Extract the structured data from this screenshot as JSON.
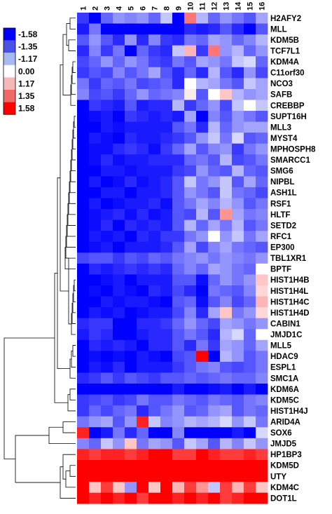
{
  "chart_data": {
    "type": "heatmap",
    "columns": [
      "1",
      "2",
      "3",
      "4",
      "5",
      "6",
      "7",
      "8",
      "9",
      "10",
      "11",
      "12",
      "13",
      "14",
      "15",
      "16"
    ],
    "rows": [
      "H2AFY2",
      "MLL",
      "KDM5B",
      "TCF7L1",
      "KDM4A",
      "C11orf30",
      "NCO3",
      "SAFB",
      "CREBBP",
      "SUPT16H",
      "MLL3",
      "MYST4",
      "MPHOSPH8",
      "SMARCC1",
      "SMG6",
      "NIPBL",
      "ASH1L",
      "RSF1",
      "HLTF",
      "SETD2",
      "RFC1",
      "EP300",
      "TBL1XR1",
      "BPTF",
      "HIST1H4B",
      "HIST1H4L",
      "HIST1H4C",
      "HIST1H4D",
      "CABIN1",
      "JMJD1C",
      "MLL5",
      "HDAC9",
      "ESPL1",
      "SMC1A",
      "KDM6A",
      "KDM5C",
      "HIST1H4J",
      "ARID4A",
      "SOX6",
      "JMJD5",
      "HP1BP3",
      "KDM5D",
      "UTY",
      "KDM4C",
      "DOT1L"
    ],
    "color_scale": {
      "legend": [
        "-1.58",
        "-1.35",
        "-1.17",
        "0.00",
        "1.17",
        "1.35",
        "1.58"
      ],
      "colors": [
        "#0000ff",
        "#4a52e6",
        "#a8b8f0",
        "#ffffff",
        "#f4b8b8",
        "#f06868",
        "#ff0000"
      ],
      "min": -1.58,
      "max": 1.58,
      "legend_placement": "top-left"
    },
    "dendrogram_placement": "left",
    "values": [
      [
        -1.2,
        -1.58,
        -0.9,
        -0.6,
        -0.7,
        -0.6,
        -0.9,
        -0.3,
        -1.58,
        0.8,
        -0.4,
        -0.9,
        -0.6,
        -0.8,
        -1.0,
        -0.5
      ],
      [
        -1.4,
        -0.8,
        -1.58,
        -1.58,
        -1.58,
        -1.58,
        -1.58,
        -1.58,
        -1.58,
        -1.3,
        -1.4,
        -1.3,
        -1.0,
        -1.3,
        -1.58,
        -1.0
      ],
      [
        -1.0,
        -0.6,
        -1.0,
        -1.3,
        -0.6,
        -1.3,
        -0.7,
        -1.2,
        -1.3,
        -0.8,
        -0.9,
        -0.5,
        -0.6,
        -0.9,
        -0.7,
        -0.4
      ],
      [
        -1.3,
        -0.7,
        -1.2,
        -0.8,
        -1.58,
        -0.9,
        -1.2,
        -1.3,
        -0.3,
        0.4,
        -1.2,
        0.8,
        -0.6,
        -0.4,
        -0.9,
        -0.6
      ],
      [
        -1.1,
        -0.9,
        -0.6,
        -0.9,
        -0.6,
        -0.8,
        -1.1,
        -1.2,
        -0.8,
        -1.0,
        -0.5,
        -0.6,
        -0.8,
        -0.3,
        -0.2,
        -0.9
      ],
      [
        -1.2,
        -1.0,
        -1.1,
        -0.7,
        -1.0,
        -0.8,
        -0.5,
        -1.0,
        -1.3,
        -0.9,
        -1.3,
        -0.4,
        -1.0,
        -1.3,
        -0.6,
        -1.1
      ],
      [
        -0.8,
        -1.2,
        -0.9,
        -1.0,
        -0.8,
        -1.1,
        -1.0,
        -0.9,
        -1.3,
        0.0,
        -0.4,
        -0.5,
        -0.8,
        -1.0,
        -0.3,
        -0.5
      ],
      [
        -0.7,
        -1.1,
        -1.0,
        -1.2,
        -0.9,
        -0.6,
        -0.9,
        -0.8,
        -0.7,
        0.1,
        -1.0,
        0.0,
        0.3,
        -0.4,
        -0.6,
        -0.5
      ],
      [
        -1.58,
        -1.2,
        -1.3,
        -1.4,
        -1.0,
        -1.4,
        -1.3,
        -1.3,
        -0.4,
        -1.2,
        -0.9,
        -0.6,
        -1.1,
        -0.3,
        0.0,
        -0.3
      ],
      [
        -1.58,
        -1.5,
        -1.4,
        -1.58,
        -1.2,
        -1.3,
        -1.4,
        -1.3,
        -1.4,
        -0.5,
        -1.58,
        -0.7,
        -1.0,
        -0.6,
        -0.8,
        -1.0
      ],
      [
        -1.58,
        -1.58,
        -1.4,
        -1.5,
        -1.4,
        -1.4,
        -1.4,
        -1.4,
        -1.0,
        -0.8,
        -1.3,
        -0.4,
        -0.9,
        -0.6,
        -0.5,
        -0.5
      ],
      [
        -1.58,
        -1.4,
        -1.5,
        -1.58,
        -1.3,
        -1.4,
        -1.4,
        -1.3,
        -1.2,
        -1.0,
        -0.6,
        -0.3,
        -0.8,
        -0.2,
        -1.0,
        -0.9
      ],
      [
        -1.58,
        -1.5,
        -1.5,
        -1.3,
        -1.2,
        -1.3,
        -1.5,
        -1.2,
        -0.9,
        -0.5,
        -1.0,
        -0.7,
        -0.6,
        -1.2,
        -0.8,
        -0.6
      ],
      [
        -1.58,
        -1.5,
        -1.3,
        -1.5,
        -1.4,
        -1.4,
        -1.3,
        -1.3,
        -1.3,
        -0.9,
        -0.8,
        -1.0,
        -0.4,
        -1.1,
        -1.0,
        -0.8
      ],
      [
        -1.58,
        -1.58,
        -1.4,
        -1.4,
        -1.5,
        -1.4,
        -1.4,
        -1.4,
        -1.2,
        -1.1,
        -0.6,
        -0.9,
        -1.0,
        -0.4,
        -0.9,
        -1.0
      ],
      [
        -1.58,
        -1.4,
        -1.58,
        -1.5,
        -1.3,
        -1.5,
        -1.4,
        -1.3,
        -1.0,
        -0.3,
        -0.8,
        -0.6,
        -0.3,
        -1.0,
        -0.5,
        -0.9
      ],
      [
        -1.58,
        -1.58,
        -1.4,
        -1.4,
        -1.58,
        -1.4,
        -1.4,
        -1.3,
        -1.0,
        -0.6,
        -0.8,
        -1.0,
        -0.3,
        -0.8,
        -0.9,
        -1.1
      ],
      [
        -1.58,
        -1.4,
        -1.58,
        -1.5,
        -1.4,
        -1.4,
        -1.3,
        -1.5,
        -1.0,
        -0.8,
        -0.5,
        -0.7,
        -0.4,
        -0.6,
        -1.0,
        -0.8
      ],
      [
        -1.58,
        -1.5,
        -1.4,
        -1.3,
        -1.5,
        -1.3,
        -1.5,
        -1.4,
        -1.0,
        -1.1,
        -0.4,
        -1.0,
        0.6,
        -0.5,
        -0.8,
        -0.7
      ],
      [
        -1.58,
        -1.5,
        -1.3,
        -1.58,
        -1.3,
        -1.4,
        -1.3,
        -1.4,
        -1.0,
        -0.4,
        -0.9,
        -0.5,
        -0.8,
        -0.4,
        -1.0,
        -0.8
      ],
      [
        -1.58,
        -1.4,
        -1.5,
        -1.4,
        -1.58,
        -1.3,
        -1.4,
        -1.2,
        -1.2,
        -0.8,
        -0.6,
        0.0,
        -0.6,
        -0.3,
        -0.8,
        -0.5
      ],
      [
        -1.58,
        -1.5,
        -1.4,
        -1.58,
        -1.4,
        -1.4,
        -1.4,
        -1.3,
        -1.0,
        -0.5,
        -1.1,
        -0.7,
        -0.5,
        -0.8,
        -0.9,
        -1.0
      ],
      [
        -1.1,
        -1.0,
        -1.0,
        -1.2,
        -1.0,
        -1.1,
        -0.9,
        -1.0,
        -0.8,
        -0.7,
        -0.6,
        -0.8,
        -0.6,
        -0.7,
        -0.8,
        -0.6
      ],
      [
        -1.58,
        -1.3,
        -1.4,
        -1.3,
        -1.2,
        -1.3,
        -1.2,
        -1.3,
        -0.9,
        -0.7,
        -0.9,
        -0.5,
        -0.6,
        -0.8,
        -0.9,
        0.0
      ],
      [
        -1.58,
        -1.58,
        -1.5,
        -1.4,
        -1.58,
        -1.4,
        -1.4,
        -1.4,
        -1.0,
        -1.0,
        -1.5,
        -0.9,
        -0.6,
        -0.8,
        -0.6,
        0.3
      ],
      [
        -1.58,
        -1.5,
        -1.58,
        -1.4,
        -1.5,
        -1.58,
        -1.3,
        -1.4,
        -1.1,
        -1.3,
        -1.58,
        -0.8,
        -0.9,
        -1.0,
        -0.7,
        0.2
      ],
      [
        -1.58,
        -1.58,
        -1.4,
        -1.5,
        -1.4,
        -1.4,
        -1.5,
        -1.58,
        -1.0,
        -0.9,
        -1.5,
        -1.0,
        -0.7,
        -1.1,
        -0.9,
        0.4
      ],
      [
        -1.58,
        -1.4,
        -1.5,
        -1.4,
        -1.58,
        -1.5,
        -1.4,
        -1.4,
        -1.1,
        -0.7,
        -1.3,
        -0.5,
        0.3,
        -0.8,
        -0.6,
        0.2
      ],
      [
        -1.3,
        -1.2,
        -1.2,
        -1.58,
        -1.58,
        -1.3,
        -1.3,
        -1.2,
        -0.9,
        -0.6,
        -0.9,
        -1.1,
        -0.5,
        -0.6,
        -0.8,
        -0.6
      ],
      [
        -1.4,
        -1.2,
        -1.3,
        -1.58,
        -1.58,
        -1.4,
        -1.3,
        -1.3,
        -1.0,
        -0.8,
        -1.0,
        -1.3,
        -0.4,
        -0.2,
        -0.9,
        0.0
      ],
      [
        -1.58,
        -1.3,
        -1.4,
        -1.3,
        -1.4,
        -1.58,
        -1.3,
        -1.3,
        -1.0,
        -1.3,
        -0.8,
        -1.2,
        -0.5,
        -0.6,
        -0.9,
        -0.5
      ],
      [
        -1.58,
        -1.5,
        -1.58,
        -1.5,
        -1.58,
        -1.4,
        -1.5,
        -1.58,
        -1.1,
        -1.0,
        1.58,
        -1.58,
        -0.4,
        -0.6,
        -1.0,
        -0.8
      ],
      [
        -1.58,
        -1.4,
        -1.5,
        -1.3,
        -1.58,
        -1.4,
        -1.4,
        -1.4,
        -1.2,
        -1.0,
        -0.8,
        -0.7,
        -1.0,
        -1.1,
        -1.0,
        -0.8
      ],
      [
        -1.3,
        -1.2,
        -1.0,
        -1.2,
        -1.0,
        -1.1,
        -1.2,
        -1.0,
        -1.0,
        -0.9,
        -1.0,
        -0.9,
        -0.8,
        -0.9,
        -0.9,
        -0.7
      ],
      [
        -1.58,
        -1.58,
        -1.58,
        -1.58,
        -1.58,
        -1.58,
        -1.58,
        -1.58,
        -1.4,
        -1.58,
        -1.58,
        -1.5,
        -1.4,
        -1.58,
        -1.4,
        -1.58
      ],
      [
        -1.2,
        -1.1,
        -1.0,
        -1.2,
        -1.1,
        -0.8,
        -1.0,
        -1.0,
        -0.8,
        -0.9,
        -1.0,
        -0.8,
        -0.9,
        -1.0,
        -0.8,
        -0.7
      ],
      [
        -1.2,
        -0.9,
        -1.1,
        -0.9,
        -0.8,
        -1.3,
        -1.0,
        -0.8,
        -0.6,
        -1.0,
        -0.9,
        -0.6,
        -0.5,
        -1.0,
        -0.8,
        -0.9
      ],
      [
        -0.8,
        -0.6,
        -0.5,
        -1.0,
        -0.6,
        1.35,
        -0.3,
        -0.7,
        -0.6,
        -0.4,
        -0.5,
        -0.4,
        -0.2,
        -0.6,
        -0.3,
        -0.8
      ],
      [
        1.35,
        -1.58,
        -1.4,
        -0.8,
        -1.3,
        -0.9,
        -1.58,
        -1.58,
        -0.7,
        -1.58,
        -1.58,
        -1.58,
        -1.58,
        -1.4,
        -1.58,
        -0.2
      ],
      [
        -0.7,
        -0.9,
        -0.3,
        -0.6,
        0.3,
        -0.8,
        -0.5,
        -0.6,
        -1.0,
        -0.3,
        -0.5,
        -1.0,
        -0.4,
        -0.7,
        -0.3,
        -0.6
      ],
      [
        1.35,
        1.17,
        1.35,
        1.35,
        1.17,
        1.35,
        1.58,
        1.58,
        1.17,
        1.17,
        1.58,
        1.35,
        1.17,
        1.17,
        1.35,
        1.17
      ],
      [
        1.58,
        1.58,
        1.58,
        1.58,
        1.58,
        1.58,
        1.58,
        1.58,
        1.58,
        1.58,
        1.58,
        1.58,
        1.58,
        1.58,
        1.58,
        1.58
      ],
      [
        1.58,
        1.58,
        1.58,
        1.58,
        1.58,
        1.58,
        1.58,
        1.58,
        1.58,
        1.58,
        1.58,
        1.58,
        1.58,
        1.58,
        1.58,
        1.58
      ],
      [
        1.58,
        0.3,
        1.17,
        0.3,
        -0.6,
        1.58,
        0.3,
        1.58,
        0.4,
        1.17,
        0.6,
        -0.3,
        1.17,
        0.4,
        1.17,
        0.3
      ],
      [
        1.58,
        1.35,
        1.58,
        1.35,
        1.58,
        1.17,
        1.58,
        1.58,
        1.35,
        1.58,
        1.35,
        1.58,
        1.17,
        1.35,
        1.58,
        1.58
      ]
    ]
  }
}
